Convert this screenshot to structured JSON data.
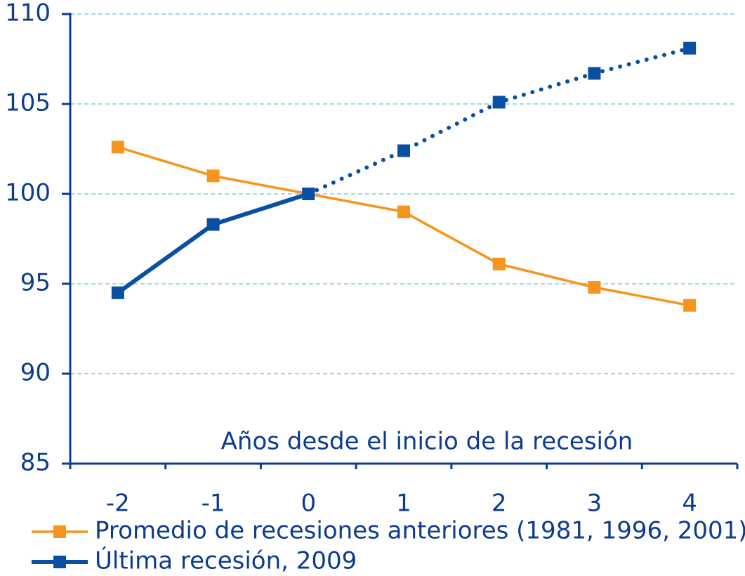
{
  "chart_data": {
    "type": "line",
    "x_label": "Años desde el inicio de la recesión",
    "categories": [
      "-2",
      "-1",
      "0",
      "1",
      "2",
      "3",
      "4"
    ],
    "series": [
      {
        "name": "Promedio de recesiones anteriores (1981, 1996, 2001)",
        "color": "#f7941d",
        "values": [
          102.6,
          101.0,
          100,
          99.0,
          96.1,
          94.8,
          93.8
        ]
      },
      {
        "name": "Última recesión, 2009",
        "color": "#0b4fa3",
        "values": [
          94.5,
          98.3,
          100,
          102.4,
          105.1,
          106.7,
          108.1
        ],
        "dotted_from_index": 3
      }
    ],
    "ylim": [
      85,
      110
    ],
    "yticks": [
      85,
      90,
      95,
      100,
      105,
      110
    ],
    "grid": true,
    "legend": "bottom"
  }
}
